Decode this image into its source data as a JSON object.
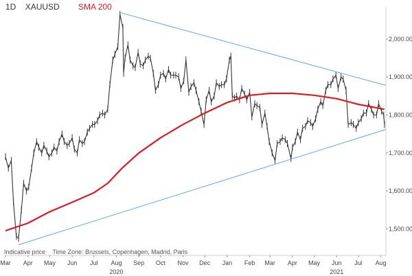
{
  "header": {
    "timeframe": "1D",
    "symbol": "XAUUSD",
    "indicator": "SMA 200"
  },
  "footnote": {
    "price_type": "Indicative price",
    "time_zone": "Time Zone: Brussels, Copenhagen, Madrid, Paris"
  },
  "chart_data": {
    "type": "line",
    "title": "XAUUSD",
    "xlabel": "",
    "ylabel": "",
    "grid": false,
    "ylim": [
      1430,
      2085
    ],
    "xlim": [
      "2020-03-01",
      "2021-08-08"
    ],
    "yticks": [
      1500,
      1600,
      1700,
      1800,
      1900,
      2000
    ],
    "ytick_labels": [
      "1,500.00",
      "1,600.00",
      "1,700.00",
      "1,800.00",
      "1,900.00",
      "2,000.00"
    ],
    "xticks": [
      {
        "date": "2020-03-01",
        "label": "Mar"
      },
      {
        "date": "2020-04-01",
        "label": "Apr"
      },
      {
        "date": "2020-05-01",
        "label": "May"
      },
      {
        "date": "2020-06-01",
        "label": "Jun"
      },
      {
        "date": "2020-07-01",
        "label": "Jul"
      },
      {
        "date": "2020-08-01",
        "label": "Aug"
      },
      {
        "date": "2020-09-01",
        "label": "Sep"
      },
      {
        "date": "2020-10-01",
        "label": "Oct"
      },
      {
        "date": "2020-11-01",
        "label": "Nov"
      },
      {
        "date": "2020-12-01",
        "label": "Dec"
      },
      {
        "date": "2021-01-01",
        "label": "Jan"
      },
      {
        "date": "2021-02-01",
        "label": "Feb"
      },
      {
        "date": "2021-03-01",
        "label": "Mar"
      },
      {
        "date": "2021-04-01",
        "label": "Apr"
      },
      {
        "date": "2021-05-01",
        "label": "May"
      },
      {
        "date": "2021-06-01",
        "label": "Jun"
      },
      {
        "date": "2021-07-01",
        "label": "Jul"
      },
      {
        "date": "2021-08-01",
        "label": "Aug"
      }
    ],
    "year_labels": [
      {
        "date": "2020-08-01",
        "label": "2020"
      },
      {
        "date": "2021-06-01",
        "label": "2021"
      }
    ],
    "colors": {
      "price": "#333333",
      "sma": "#e0191f",
      "trendline": "#5aa9dd",
      "axis_text": "#444444"
    },
    "series": [
      {
        "name": "XAUUSD",
        "color": "#333333",
        "points": [
          [
            "2020-03-01",
            1690
          ],
          [
            "2020-03-05",
            1660
          ],
          [
            "2020-03-09",
            1680
          ],
          [
            "2020-03-12",
            1570
          ],
          [
            "2020-03-16",
            1480
          ],
          [
            "2020-03-19",
            1475
          ],
          [
            "2020-03-23",
            1550
          ],
          [
            "2020-03-26",
            1620
          ],
          [
            "2020-03-30",
            1600
          ],
          [
            "2020-04-02",
            1610
          ],
          [
            "2020-04-06",
            1660
          ],
          [
            "2020-04-09",
            1700
          ],
          [
            "2020-04-13",
            1730
          ],
          [
            "2020-04-16",
            1715
          ],
          [
            "2020-04-20",
            1700
          ],
          [
            "2020-04-23",
            1720
          ],
          [
            "2020-04-27",
            1705
          ],
          [
            "2020-04-30",
            1690
          ],
          [
            "2020-05-04",
            1700
          ],
          [
            "2020-05-07",
            1715
          ],
          [
            "2020-05-11",
            1705
          ],
          [
            "2020-05-14",
            1730
          ],
          [
            "2020-05-18",
            1750
          ],
          [
            "2020-05-21",
            1730
          ],
          [
            "2020-05-25",
            1720
          ],
          [
            "2020-05-28",
            1725
          ],
          [
            "2020-06-01",
            1740
          ],
          [
            "2020-06-04",
            1710
          ],
          [
            "2020-06-08",
            1700
          ],
          [
            "2020-06-11",
            1735
          ],
          [
            "2020-06-15",
            1725
          ],
          [
            "2020-06-18",
            1730
          ],
          [
            "2020-06-22",
            1755
          ],
          [
            "2020-06-25",
            1765
          ],
          [
            "2020-06-29",
            1775
          ],
          [
            "2020-07-02",
            1775
          ],
          [
            "2020-07-06",
            1785
          ],
          [
            "2020-07-09",
            1800
          ],
          [
            "2020-07-13",
            1805
          ],
          [
            "2020-07-16",
            1800
          ],
          [
            "2020-07-20",
            1815
          ],
          [
            "2020-07-23",
            1880
          ],
          [
            "2020-07-27",
            1945
          ],
          [
            "2020-07-30",
            1960
          ],
          [
            "2020-08-03",
            1980
          ],
          [
            "2020-08-06",
            2065
          ],
          [
            "2020-08-10",
            2030
          ],
          [
            "2020-08-11",
            1910
          ],
          [
            "2020-08-13",
            1950
          ],
          [
            "2020-08-17",
            1985
          ],
          [
            "2020-08-20",
            1945
          ],
          [
            "2020-08-24",
            1930
          ],
          [
            "2020-08-27",
            1925
          ],
          [
            "2020-08-31",
            1965
          ],
          [
            "2020-09-03",
            1935
          ],
          [
            "2020-09-07",
            1930
          ],
          [
            "2020-09-10",
            1945
          ],
          [
            "2020-09-14",
            1955
          ],
          [
            "2020-09-17",
            1950
          ],
          [
            "2020-09-21",
            1910
          ],
          [
            "2020-09-24",
            1865
          ],
          [
            "2020-09-28",
            1880
          ],
          [
            "2020-10-01",
            1905
          ],
          [
            "2020-10-05",
            1910
          ],
          [
            "2020-10-08",
            1895
          ],
          [
            "2020-10-12",
            1920
          ],
          [
            "2020-10-15",
            1905
          ],
          [
            "2020-10-19",
            1905
          ],
          [
            "2020-10-22",
            1905
          ],
          [
            "2020-10-26",
            1900
          ],
          [
            "2020-10-29",
            1870
          ],
          [
            "2020-11-02",
            1890
          ],
          [
            "2020-11-05",
            1945
          ],
          [
            "2020-11-09",
            1860
          ],
          [
            "2020-11-12",
            1875
          ],
          [
            "2020-11-16",
            1885
          ],
          [
            "2020-11-19",
            1865
          ],
          [
            "2020-11-23",
            1835
          ],
          [
            "2020-11-26",
            1810
          ],
          [
            "2020-11-30",
            1775
          ],
          [
            "2020-12-03",
            1840
          ],
          [
            "2020-12-07",
            1865
          ],
          [
            "2020-12-10",
            1835
          ],
          [
            "2020-12-14",
            1850
          ],
          [
            "2020-12-17",
            1885
          ],
          [
            "2020-12-21",
            1875
          ],
          [
            "2020-12-24",
            1880
          ],
          [
            "2020-12-28",
            1880
          ],
          [
            "2020-12-31",
            1895
          ],
          [
            "2021-01-04",
            1945
          ],
          [
            "2021-01-06",
            1955
          ],
          [
            "2021-01-08",
            1850
          ],
          [
            "2021-01-11",
            1845
          ],
          [
            "2021-01-14",
            1850
          ],
          [
            "2021-01-18",
            1840
          ],
          [
            "2021-01-21",
            1870
          ],
          [
            "2021-01-25",
            1855
          ],
          [
            "2021-01-28",
            1840
          ],
          [
            "2021-02-01",
            1860
          ],
          [
            "2021-02-04",
            1795
          ],
          [
            "2021-02-08",
            1830
          ],
          [
            "2021-02-11",
            1825
          ],
          [
            "2021-02-15",
            1820
          ],
          [
            "2021-02-18",
            1775
          ],
          [
            "2021-02-22",
            1805
          ],
          [
            "2021-02-25",
            1770
          ],
          [
            "2021-02-28",
            1730
          ],
          [
            "2021-03-04",
            1700
          ],
          [
            "2021-03-08",
            1680
          ],
          [
            "2021-03-11",
            1725
          ],
          [
            "2021-03-15",
            1730
          ],
          [
            "2021-03-18",
            1740
          ],
          [
            "2021-03-22",
            1735
          ],
          [
            "2021-03-25",
            1725
          ],
          [
            "2021-03-30",
            1685
          ],
          [
            "2021-04-01",
            1715
          ],
          [
            "2021-04-05",
            1730
          ],
          [
            "2021-04-08",
            1755
          ],
          [
            "2021-04-12",
            1735
          ],
          [
            "2021-04-15",
            1765
          ],
          [
            "2021-04-19",
            1770
          ],
          [
            "2021-04-22",
            1785
          ],
          [
            "2021-04-26",
            1780
          ],
          [
            "2021-04-29",
            1770
          ],
          [
            "2021-05-03",
            1790
          ],
          [
            "2021-05-06",
            1815
          ],
          [
            "2021-05-10",
            1835
          ],
          [
            "2021-05-13",
            1825
          ],
          [
            "2021-05-17",
            1865
          ],
          [
            "2021-05-20",
            1880
          ],
          [
            "2021-05-24",
            1880
          ],
          [
            "2021-05-27",
            1895
          ],
          [
            "2021-05-31",
            1905
          ],
          [
            "2021-06-03",
            1870
          ],
          [
            "2021-06-07",
            1900
          ],
          [
            "2021-06-10",
            1895
          ],
          [
            "2021-06-14",
            1865
          ],
          [
            "2021-06-17",
            1775
          ],
          [
            "2021-06-21",
            1780
          ],
          [
            "2021-06-24",
            1775
          ],
          [
            "2021-06-28",
            1765
          ],
          [
            "2021-07-01",
            1780
          ],
          [
            "2021-07-05",
            1790
          ],
          [
            "2021-07-08",
            1805
          ],
          [
            "2021-07-12",
            1805
          ],
          [
            "2021-07-15",
            1830
          ],
          [
            "2021-07-19",
            1815
          ],
          [
            "2021-07-22",
            1800
          ],
          [
            "2021-07-26",
            1800
          ],
          [
            "2021-07-29",
            1830
          ],
          [
            "2021-08-02",
            1810
          ],
          [
            "2021-08-05",
            1800
          ],
          [
            "2021-08-06",
            1775
          ]
        ]
      },
      {
        "name": "SMA 200",
        "color": "#e0191f",
        "points": [
          [
            "2020-03-01",
            1495
          ],
          [
            "2020-04-01",
            1515
          ],
          [
            "2020-05-01",
            1545
          ],
          [
            "2020-06-01",
            1570
          ],
          [
            "2020-07-01",
            1595
          ],
          [
            "2020-07-20",
            1620
          ],
          [
            "2020-08-10",
            1662
          ],
          [
            "2020-09-01",
            1700
          ],
          [
            "2020-10-01",
            1740
          ],
          [
            "2020-11-01",
            1775
          ],
          [
            "2020-12-01",
            1805
          ],
          [
            "2021-01-01",
            1833
          ],
          [
            "2021-02-01",
            1852
          ],
          [
            "2021-03-01",
            1857
          ],
          [
            "2021-04-01",
            1857
          ],
          [
            "2021-05-01",
            1852
          ],
          [
            "2021-06-01",
            1843
          ],
          [
            "2021-07-01",
            1828
          ],
          [
            "2021-08-06",
            1815
          ]
        ]
      },
      {
        "name": "",
        "color": "#5aa9dd",
        "points": [
          [
            "2020-08-06",
            2070
          ],
          [
            "2021-08-08",
            1878
          ]
        ]
      },
      {
        "name": "",
        "color": "#5aa9dd",
        "points": [
          [
            "2020-03-19",
            1458
          ],
          [
            "2021-08-08",
            1762
          ]
        ]
      }
    ]
  }
}
